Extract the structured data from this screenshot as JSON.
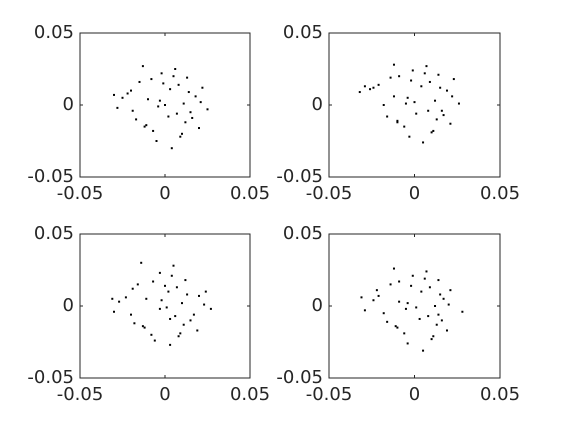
{
  "chart_data": [
    {
      "type": "scatter",
      "color": "#000000",
      "xlim": [
        -0.05,
        0.05
      ],
      "ylim": [
        -0.05,
        0.05
      ],
      "xticks": [
        -0.05,
        0,
        0.05
      ],
      "yticks": [
        -0.05,
        0,
        0.05
      ],
      "x": [
        -0.02,
        -0.012,
        0.005,
        0.015,
        -0.003,
        0.022,
        -0.028,
        0.01,
        -0.008,
        0.002,
        0.018,
        -0.017,
        0.006,
        -0.022,
        0.012,
        -0.005,
        0.025,
        -0.01,
        0.0,
        0.008,
        -0.015,
        0.02,
        -0.025,
        0.004,
        -0.002,
        0.014,
        -0.007,
        0.011,
        -0.019,
        0.003,
        0.016,
        -0.013,
        0.007,
        -0.001,
        0.021,
        -0.03,
        0.009,
        -0.004,
        0.013,
        -0.011
      ],
      "values": [
        0.01,
        -0.015,
        0.02,
        -0.005,
        0.003,
        0.012,
        -0.002,
        -0.02,
        0.018,
        -0.008,
        0.006,
        -0.01,
        0.025,
        0.008,
        -0.012,
        -0.025,
        -0.003,
        0.004,
        0.0,
        0.014,
        0.016,
        -0.016,
        0.005,
        -0.03,
        0.022,
        0.009,
        -0.018,
        0.001,
        -0.004,
        0.011,
        -0.009,
        0.027,
        -0.006,
        0.015,
        0.002,
        0.007,
        -0.022,
        -0.001,
        0.019,
        -0.014
      ]
    },
    {
      "type": "scatter",
      "color": "#000000",
      "xlim": [
        -0.05,
        0.05
      ],
      "ylim": [
        -0.05,
        0.05
      ],
      "xticks": [
        -0.05,
        0,
        0.05
      ],
      "yticks": [
        -0.05,
        0,
        0.05
      ],
      "x": [
        -0.021,
        -0.01,
        0.006,
        0.016,
        -0.004,
        0.023,
        -0.032,
        0.011,
        -0.009,
        0.001,
        0.019,
        -0.016,
        0.007,
        -0.024,
        0.013,
        -0.003,
        0.026,
        -0.012,
        0.0,
        0.009,
        -0.014,
        0.021,
        -0.026,
        0.005,
        -0.001,
        0.015,
        -0.006,
        0.012,
        -0.018,
        0.004,
        0.017,
        -0.012,
        0.008,
        -0.002,
        0.022,
        -0.029,
        0.01,
        -0.005,
        0.014,
        -0.01
      ],
      "values": [
        0.014,
        -0.012,
        0.022,
        -0.004,
        0.005,
        0.018,
        0.009,
        -0.018,
        0.02,
        -0.006,
        0.01,
        -0.008,
        0.027,
        0.012,
        -0.01,
        -0.022,
        0.001,
        0.006,
        0.002,
        0.016,
        0.019,
        -0.013,
        0.011,
        -0.026,
        0.024,
        0.012,
        -0.015,
        0.003,
        0.0,
        0.013,
        -0.007,
        0.028,
        -0.004,
        0.017,
        0.006,
        0.013,
        -0.019,
        0.001,
        0.021,
        -0.011
      ]
    },
    {
      "type": "scatter",
      "color": "#000000",
      "xlim": [
        -0.05,
        0.05
      ],
      "ylim": [
        -0.05,
        0.05
      ],
      "xticks": [
        -0.05,
        0,
        0.05
      ],
      "yticks": [
        -0.05,
        0,
        0.05
      ],
      "x": [
        -0.019,
        -0.013,
        0.004,
        0.017,
        -0.002,
        0.024,
        -0.03,
        0.009,
        -0.007,
        0.003,
        0.02,
        -0.018,
        0.005,
        -0.023,
        0.011,
        -0.006,
        0.027,
        -0.011,
        0.001,
        0.007,
        -0.016,
        0.019,
        -0.027,
        0.003,
        -0.003,
        0.013,
        -0.008,
        0.01,
        -0.02,
        0.002,
        0.015,
        -0.014,
        0.006,
        0.0,
        0.023,
        -0.031,
        0.008,
        -0.003,
        0.012,
        -0.012
      ],
      "values": [
        0.012,
        -0.014,
        0.021,
        -0.006,
        0.004,
        0.01,
        -0.004,
        -0.019,
        0.017,
        -0.009,
        0.007,
        -0.012,
        0.028,
        0.006,
        -0.013,
        -0.024,
        -0.002,
        0.005,
        -0.001,
        0.013,
        0.015,
        -0.017,
        0.003,
        -0.027,
        0.023,
        0.008,
        -0.02,
        0.002,
        -0.006,
        0.01,
        -0.01,
        0.03,
        -0.007,
        0.014,
        0.001,
        0.005,
        -0.021,
        -0.002,
        0.018,
        -0.015
      ]
    },
    {
      "type": "scatter",
      "color": "#000000",
      "xlim": [
        -0.05,
        0.05
      ],
      "ylim": [
        -0.05,
        0.05
      ],
      "xticks": [
        -0.05,
        0,
        0.05
      ],
      "yticks": [
        -0.05,
        0,
        0.05
      ],
      "x": [
        -0.022,
        -0.011,
        0.006,
        0.014,
        -0.004,
        0.021,
        -0.029,
        0.011,
        -0.009,
        0.003,
        0.017,
        -0.016,
        0.007,
        -0.021,
        0.013,
        -0.004,
        0.028,
        -0.009,
        0.001,
        0.009,
        -0.014,
        0.019,
        -0.024,
        0.005,
        -0.001,
        0.015,
        -0.006,
        0.012,
        -0.018,
        0.004,
        0.016,
        -0.012,
        0.008,
        -0.002,
        0.02,
        -0.031,
        0.01,
        -0.005,
        0.014,
        -0.01
      ],
      "values": [
        0.011,
        -0.014,
        0.019,
        -0.006,
        0.002,
        0.011,
        -0.003,
        -0.021,
        0.017,
        -0.009,
        0.005,
        -0.011,
        0.024,
        0.007,
        -0.013,
        -0.026,
        -0.004,
        0.003,
        -0.001,
        0.013,
        0.015,
        -0.017,
        0.004,
        -0.031,
        0.021,
        0.008,
        -0.019,
        0.0,
        -0.005,
        0.01,
        -0.01,
        0.026,
        -0.007,
        0.014,
        0.001,
        0.006,
        -0.023,
        -0.002,
        0.018,
        -0.015
      ]
    }
  ]
}
